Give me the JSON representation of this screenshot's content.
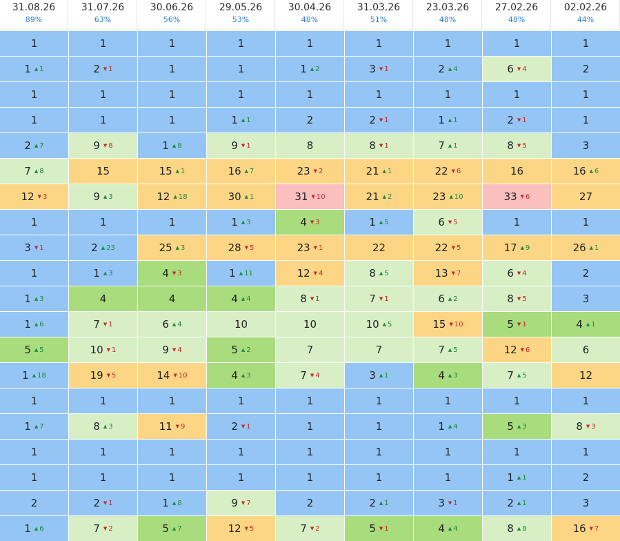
{
  "columns": [
    {
      "date": "31.08.26",
      "pct": "89%"
    },
    {
      "date": "31.07.26",
      "pct": "63%"
    },
    {
      "date": "30.06.26",
      "pct": "56%"
    },
    {
      "date": "29.05.26",
      "pct": "53%"
    },
    {
      "date": "30.04.26",
      "pct": "48%"
    },
    {
      "date": "31.03.26",
      "pct": "51%"
    },
    {
      "date": "23.03.26",
      "pct": "48%"
    },
    {
      "date": "27.02.26",
      "pct": "48%"
    },
    {
      "date": "02.02.26",
      "pct": "44%"
    }
  ],
  "colors": {
    "b": "#94c5f5",
    "g": "#a9dc7d",
    "l": "#d8efc6",
    "y": "#fdd685",
    "r": "#fbbfbf",
    "up": "#1f8a3a",
    "down": "#c62828",
    "pct_text": "#2f7fd3"
  },
  "rows": [
    [
      [
        "1",
        "",
        "",
        "b"
      ],
      [
        "1",
        "",
        "",
        "b"
      ],
      [
        "1",
        "",
        "",
        "b"
      ],
      [
        "1",
        "",
        "",
        "b"
      ],
      [
        "1",
        "",
        "",
        "b"
      ],
      [
        "1",
        "",
        "",
        "b"
      ],
      [
        "1",
        "",
        "",
        "b"
      ],
      [
        "1",
        "",
        "",
        "b"
      ],
      [
        "1",
        "",
        "",
        "b"
      ]
    ],
    [
      [
        "1",
        "up",
        "1",
        "b"
      ],
      [
        "2",
        "down",
        "1",
        "b"
      ],
      [
        "1",
        "",
        "",
        "b"
      ],
      [
        "1",
        "",
        "",
        "b"
      ],
      [
        "1",
        "up",
        "2",
        "b"
      ],
      [
        "3",
        "down",
        "1",
        "b"
      ],
      [
        "2",
        "up",
        "4",
        "b"
      ],
      [
        "6",
        "down",
        "4",
        "l"
      ],
      [
        "2",
        "",
        "",
        "b"
      ]
    ],
    [
      [
        "1",
        "",
        "",
        "b"
      ],
      [
        "1",
        "",
        "",
        "b"
      ],
      [
        "1",
        "",
        "",
        "b"
      ],
      [
        "1",
        "",
        "",
        "b"
      ],
      [
        "1",
        "",
        "",
        "b"
      ],
      [
        "1",
        "",
        "",
        "b"
      ],
      [
        "1",
        "",
        "",
        "b"
      ],
      [
        "1",
        "",
        "",
        "b"
      ],
      [
        "1",
        "",
        "",
        "b"
      ]
    ],
    [
      [
        "1",
        "",
        "",
        "b"
      ],
      [
        "1",
        "",
        "",
        "b"
      ],
      [
        "1",
        "",
        "",
        "b"
      ],
      [
        "1",
        "up",
        "1",
        "b"
      ],
      [
        "2",
        "",
        "",
        "b"
      ],
      [
        "2",
        "down",
        "1",
        "b"
      ],
      [
        "1",
        "up",
        "1",
        "b"
      ],
      [
        "2",
        "down",
        "1",
        "b"
      ],
      [
        "1",
        "",
        "",
        "b"
      ]
    ],
    [
      [
        "2",
        "up",
        "7",
        "b"
      ],
      [
        "9",
        "down",
        "8",
        "l"
      ],
      [
        "1",
        "up",
        "8",
        "b"
      ],
      [
        "9",
        "down",
        "1",
        "l"
      ],
      [
        "8",
        "",
        "",
        "l"
      ],
      [
        "8",
        "down",
        "1",
        "l"
      ],
      [
        "7",
        "up",
        "1",
        "l"
      ],
      [
        "8",
        "down",
        "5",
        "l"
      ],
      [
        "3",
        "",
        "",
        "b"
      ]
    ],
    [
      [
        "7",
        "up",
        "8",
        "l"
      ],
      [
        "15",
        "",
        "",
        "y"
      ],
      [
        "15",
        "up",
        "1",
        "y"
      ],
      [
        "16",
        "up",
        "7",
        "y"
      ],
      [
        "23",
        "down",
        "2",
        "y"
      ],
      [
        "21",
        "up",
        "1",
        "y"
      ],
      [
        "22",
        "down",
        "6",
        "y"
      ],
      [
        "16",
        "",
        "",
        "y"
      ],
      [
        "16",
        "up",
        "6",
        "y"
      ]
    ],
    [
      [
        "12",
        "down",
        "3",
        "y"
      ],
      [
        "9",
        "up",
        "3",
        "l"
      ],
      [
        "12",
        "up",
        "18",
        "y"
      ],
      [
        "30",
        "up",
        "1",
        "y"
      ],
      [
        "31",
        "down",
        "10",
        "r"
      ],
      [
        "21",
        "up",
        "2",
        "y"
      ],
      [
        "23",
        "up",
        "10",
        "y"
      ],
      [
        "33",
        "down",
        "6",
        "r"
      ],
      [
        "27",
        "",
        "",
        "y"
      ]
    ],
    [
      [
        "1",
        "",
        "",
        "b"
      ],
      [
        "1",
        "",
        "",
        "b"
      ],
      [
        "1",
        "",
        "",
        "b"
      ],
      [
        "1",
        "up",
        "3",
        "b"
      ],
      [
        "4",
        "down",
        "3",
        "g"
      ],
      [
        "1",
        "up",
        "5",
        "b"
      ],
      [
        "6",
        "down",
        "5",
        "l"
      ],
      [
        "1",
        "",
        "",
        "b"
      ],
      [
        "1",
        "",
        "",
        "b"
      ]
    ],
    [
      [
        "3",
        "down",
        "1",
        "b"
      ],
      [
        "2",
        "up",
        "23",
        "b"
      ],
      [
        "25",
        "up",
        "3",
        "y"
      ],
      [
        "28",
        "down",
        "5",
        "y"
      ],
      [
        "23",
        "down",
        "1",
        "y"
      ],
      [
        "22",
        "",
        "",
        "y"
      ],
      [
        "22",
        "down",
        "5",
        "y"
      ],
      [
        "17",
        "up",
        "9",
        "y"
      ],
      [
        "26",
        "up",
        "1",
        "y"
      ]
    ],
    [
      [
        "1",
        "",
        "",
        "b"
      ],
      [
        "1",
        "up",
        "3",
        "b"
      ],
      [
        "4",
        "down",
        "3",
        "g"
      ],
      [
        "1",
        "up",
        "11",
        "b"
      ],
      [
        "12",
        "down",
        "4",
        "y"
      ],
      [
        "8",
        "up",
        "5",
        "l"
      ],
      [
        "13",
        "down",
        "7",
        "y"
      ],
      [
        "6",
        "down",
        "4",
        "l"
      ],
      [
        "2",
        "",
        "",
        "b"
      ]
    ],
    [
      [
        "1",
        "up",
        "3",
        "b"
      ],
      [
        "4",
        "",
        "",
        "g"
      ],
      [
        "4",
        "",
        "",
        "g"
      ],
      [
        "4",
        "up",
        "4",
        "g"
      ],
      [
        "8",
        "down",
        "1",
        "l"
      ],
      [
        "7",
        "down",
        "1",
        "l"
      ],
      [
        "6",
        "up",
        "2",
        "l"
      ],
      [
        "8",
        "down",
        "5",
        "l"
      ],
      [
        "3",
        "",
        "",
        "b"
      ]
    ],
    [
      [
        "1",
        "up",
        "6",
        "b"
      ],
      [
        "7",
        "down",
        "1",
        "l"
      ],
      [
        "6",
        "up",
        "4",
        "l"
      ],
      [
        "10",
        "",
        "",
        "l"
      ],
      [
        "10",
        "",
        "",
        "l"
      ],
      [
        "10",
        "up",
        "5",
        "l"
      ],
      [
        "15",
        "down",
        "10",
        "y"
      ],
      [
        "5",
        "down",
        "1",
        "g"
      ],
      [
        "4",
        "up",
        "1",
        "g"
      ]
    ],
    [
      [
        "5",
        "up",
        "5",
        "g"
      ],
      [
        "10",
        "down",
        "1",
        "l"
      ],
      [
        "9",
        "down",
        "4",
        "l"
      ],
      [
        "5",
        "up",
        "2",
        "g"
      ],
      [
        "7",
        "",
        "",
        "l"
      ],
      [
        "7",
        "",
        "",
        "l"
      ],
      [
        "7",
        "up",
        "5",
        "l"
      ],
      [
        "12",
        "down",
        "6",
        "y"
      ],
      [
        "6",
        "",
        "",
        "l"
      ]
    ],
    [
      [
        "1",
        "up",
        "18",
        "b"
      ],
      [
        "19",
        "down",
        "5",
        "y"
      ],
      [
        "14",
        "down",
        "10",
        "y"
      ],
      [
        "4",
        "up",
        "3",
        "g"
      ],
      [
        "7",
        "down",
        "4",
        "l"
      ],
      [
        "3",
        "up",
        "1",
        "b"
      ],
      [
        "4",
        "up",
        "3",
        "g"
      ],
      [
        "7",
        "up",
        "5",
        "l"
      ],
      [
        "12",
        "",
        "",
        "y"
      ]
    ],
    [
      [
        "1",
        "",
        "",
        "b"
      ],
      [
        "1",
        "",
        "",
        "b"
      ],
      [
        "1",
        "",
        "",
        "b"
      ],
      [
        "1",
        "",
        "",
        "b"
      ],
      [
        "1",
        "",
        "",
        "b"
      ],
      [
        "1",
        "",
        "",
        "b"
      ],
      [
        "1",
        "",
        "",
        "b"
      ],
      [
        "1",
        "",
        "",
        "b"
      ],
      [
        "1",
        "",
        "",
        "b"
      ]
    ],
    [
      [
        "1",
        "up",
        "7",
        "b"
      ],
      [
        "8",
        "up",
        "3",
        "l"
      ],
      [
        "11",
        "down",
        "9",
        "y"
      ],
      [
        "2",
        "down",
        "1",
        "b"
      ],
      [
        "1",
        "",
        "",
        "b"
      ],
      [
        "1",
        "",
        "",
        "b"
      ],
      [
        "1",
        "up",
        "4",
        "b"
      ],
      [
        "5",
        "up",
        "3",
        "g"
      ],
      [
        "8",
        "down",
        "3",
        "l"
      ]
    ],
    [
      [
        "1",
        "",
        "",
        "b"
      ],
      [
        "1",
        "",
        "",
        "b"
      ],
      [
        "1",
        "",
        "",
        "b"
      ],
      [
        "1",
        "",
        "",
        "b"
      ],
      [
        "1",
        "",
        "",
        "b"
      ],
      [
        "1",
        "",
        "",
        "b"
      ],
      [
        "1",
        "",
        "",
        "b"
      ],
      [
        "1",
        "",
        "",
        "b"
      ],
      [
        "1",
        "",
        "",
        "b"
      ]
    ],
    [
      [
        "1",
        "",
        "",
        "b"
      ],
      [
        "1",
        "",
        "",
        "b"
      ],
      [
        "1",
        "",
        "",
        "b"
      ],
      [
        "1",
        "",
        "",
        "b"
      ],
      [
        "1",
        "",
        "",
        "b"
      ],
      [
        "1",
        "",
        "",
        "b"
      ],
      [
        "1",
        "",
        "",
        "b"
      ],
      [
        "1",
        "up",
        "1",
        "b"
      ],
      [
        "2",
        "",
        "",
        "b"
      ]
    ],
    [
      [
        "2",
        "",
        "",
        "b"
      ],
      [
        "2",
        "down",
        "1",
        "b"
      ],
      [
        "1",
        "up",
        "8",
        "b"
      ],
      [
        "9",
        "down",
        "7",
        "l"
      ],
      [
        "2",
        "",
        "",
        "b"
      ],
      [
        "2",
        "up",
        "1",
        "b"
      ],
      [
        "3",
        "down",
        "1",
        "b"
      ],
      [
        "2",
        "up",
        "1",
        "b"
      ],
      [
        "3",
        "",
        "",
        "b"
      ]
    ],
    [
      [
        "1",
        "up",
        "6",
        "b"
      ],
      [
        "7",
        "down",
        "2",
        "l"
      ],
      [
        "5",
        "up",
        "7",
        "g"
      ],
      [
        "12",
        "down",
        "5",
        "y"
      ],
      [
        "7",
        "down",
        "2",
        "l"
      ],
      [
        "5",
        "down",
        "1",
        "g"
      ],
      [
        "4",
        "up",
        "4",
        "g"
      ],
      [
        "8",
        "up",
        "8",
        "l"
      ],
      [
        "16",
        "down",
        "7",
        "y"
      ]
    ]
  ]
}
